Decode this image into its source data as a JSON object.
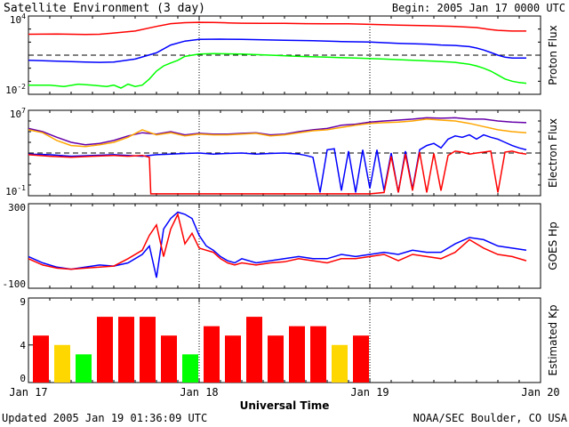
{
  "header": {
    "title": "Satellite Environment (3 day)",
    "begin": "Begin:  2005 Jan 17 0000 UTC"
  },
  "footer": {
    "updated": "Updated 2005 Jan 19 01:36:09 UTC",
    "credit": "NOAA/SEC Boulder, CO USA"
  },
  "colors": {
    "red": "#ff0000",
    "blue": "#0000ff",
    "green": "#00ff00",
    "orange": "#ffa500",
    "purple": "#6600aa",
    "kp_red": "#ff0000",
    "kp_yellow": "#ffd700",
    "kp_green": "#00ff00"
  },
  "chart_data": [
    {
      "id": "proton",
      "type": "line",
      "ylabel": "Proton Flux",
      "yscale": "log",
      "ylim": [
        0.01,
        10000
      ],
      "yticks": [
        {
          "value": 10000,
          "base": "10",
          "exp": "4"
        },
        {
          "value": 0.01,
          "base": "10",
          "exp": "-2"
        }
      ],
      "threshold": 10,
      "xlim": [
        0,
        72
      ],
      "series": [
        {
          "color": "red",
          "x": [
            0,
            4,
            6,
            8,
            10,
            12,
            15,
            18,
            20,
            22,
            24,
            26,
            28,
            30,
            33,
            36,
            39,
            42,
            45,
            48,
            52,
            56,
            60,
            63,
            64,
            65,
            66,
            67,
            68,
            69,
            70
          ],
          "y": [
            400,
            420,
            400,
            380,
            400,
            500,
            700,
            1600,
            2600,
            3100,
            3300,
            3200,
            3000,
            2800,
            2700,
            2700,
            2600,
            2500,
            2500,
            2300,
            2000,
            1800,
            1600,
            1300,
            1100,
            900,
            800,
            750,
            700,
            700,
            700
          ]
        },
        {
          "color": "blue",
          "x": [
            0,
            4,
            8,
            10,
            12,
            15,
            18,
            20,
            22,
            24,
            27,
            30,
            33,
            36,
            40,
            44,
            48,
            52,
            56,
            58,
            60,
            62,
            63,
            64,
            65,
            66,
            67,
            68,
            69,
            70
          ],
          "y": [
            4,
            3.5,
            3,
            2.8,
            3,
            5,
            15,
            60,
            120,
            160,
            170,
            160,
            150,
            140,
            130,
            110,
            100,
            80,
            70,
            60,
            55,
            45,
            35,
            25,
            16,
            10,
            7,
            6,
            6,
            6
          ]
        },
        {
          "color": "green",
          "x": [
            0,
            3,
            5,
            7,
            9,
            11,
            12,
            13,
            14,
            15,
            16,
            17,
            18,
            19,
            20,
            21,
            22,
            24,
            26,
            30,
            34,
            38,
            42,
            46,
            50,
            54,
            57,
            60,
            62,
            63,
            64,
            65,
            66,
            67,
            68,
            69,
            70
          ],
          "y": [
            0.05,
            0.05,
            0.04,
            0.06,
            0.05,
            0.04,
            0.05,
            0.03,
            0.06,
            0.04,
            0.05,
            0.15,
            0.6,
            1.5,
            2.5,
            4,
            8,
            12,
            13,
            12,
            10,
            8,
            7,
            6,
            5,
            4,
            3.5,
            2.8,
            2,
            1.5,
            1,
            0.6,
            0.3,
            0.15,
            0.1,
            0.08,
            0.07
          ]
        }
      ]
    },
    {
      "id": "electron",
      "type": "line",
      "ylabel": "Electron Flux",
      "yscale": "log",
      "ylim": [
        0.1,
        10000000
      ],
      "yticks": [
        {
          "value": 10000000,
          "base": "10",
          "exp": "7"
        },
        {
          "value": 0.1,
          "base": "10",
          "exp": "-1"
        }
      ],
      "threshold": 1000,
      "xlim": [
        0,
        72
      ],
      "series": [
        {
          "color": "purple",
          "x": [
            0,
            2,
            4,
            6,
            8,
            10,
            12,
            14,
            16,
            18,
            20,
            22,
            24,
            26,
            28,
            30,
            32,
            34,
            36,
            38,
            40,
            42,
            44,
            46,
            48,
            50,
            52,
            54,
            56,
            58,
            60,
            62,
            64,
            66,
            68,
            70
          ],
          "y": [
            200000,
            100000,
            30000,
            10000,
            6000,
            8000,
            15000,
            40000,
            80000,
            60000,
            100000,
            50000,
            70000,
            60000,
            60000,
            70000,
            80000,
            50000,
            60000,
            100000,
            150000,
            200000,
            400000,
            500000,
            800000,
            1000000,
            1200000,
            1500000,
            2000000,
            1800000,
            2000000,
            1500000,
            1500000,
            1000000,
            800000,
            700000
          ]
        },
        {
          "color": "orange",
          "x": [
            0,
            2,
            4,
            6,
            8,
            10,
            12,
            14,
            16,
            18,
            20,
            22,
            24,
            26,
            28,
            30,
            32,
            34,
            36,
            38,
            40,
            42,
            44,
            46,
            48,
            50,
            52,
            54,
            56,
            58,
            60,
            62,
            64,
            66,
            68,
            70
          ],
          "y": [
            150000,
            80000,
            15000,
            5000,
            4000,
            6000,
            10000,
            30000,
            150000,
            50000,
            80000,
            40000,
            60000,
            50000,
            50000,
            60000,
            70000,
            40000,
            50000,
            80000,
            120000,
            150000,
            250000,
            400000,
            600000,
            700000,
            800000,
            1000000,
            1500000,
            1200000,
            1000000,
            600000,
            300000,
            150000,
            100000,
            80000
          ]
        },
        {
          "color": "blue",
          "x": [
            0,
            3,
            6,
            9,
            12,
            14,
            16,
            18,
            20,
            22,
            24,
            26,
            28,
            30,
            32,
            34,
            36,
            38,
            39,
            40,
            41,
            42,
            43,
            44,
            45,
            46,
            47,
            48,
            49,
            50,
            51,
            52,
            53,
            54,
            55,
            56,
            57,
            58,
            59,
            60,
            61,
            62,
            63,
            64,
            65,
            66,
            67,
            68,
            69,
            70
          ],
          "y": [
            800,
            700,
            500,
            600,
            700,
            600,
            500,
            700,
            800,
            900,
            1000,
            800,
            900,
            1000,
            800,
            900,
            1000,
            800,
            600,
            400,
            0.2,
            2000,
            2500,
            0.3,
            1500,
            0.2,
            2000,
            0.5,
            2000,
            0.3,
            1000,
            0.2,
            1500,
            0.4,
            2000,
            5000,
            8000,
            3000,
            20000,
            40000,
            30000,
            50000,
            20000,
            50000,
            30000,
            20000,
            10000,
            5000,
            3000,
            2000
          ]
        },
        {
          "color": "red",
          "x": [
            0,
            3,
            6,
            9,
            12,
            14,
            16,
            17,
            17.2,
            20,
            24,
            28,
            32,
            36,
            40,
            44,
            48,
            50,
            51,
            52,
            53,
            54,
            55,
            56,
            57,
            58,
            59,
            60,
            61,
            62,
            63,
            64,
            65,
            66,
            67,
            68,
            69,
            70
          ],
          "y": [
            700,
            500,
            400,
            500,
            600,
            500,
            600,
            400,
            0.15,
            0.15,
            0.15,
            0.15,
            0.15,
            0.15,
            0.15,
            0.15,
            0.15,
            0.2,
            500,
            0.2,
            800,
            0.3,
            1200,
            0.2,
            900,
            0.3,
            600,
            1500,
            1200,
            800,
            1000,
            1200,
            1500,
            0.2,
            1200,
            1500,
            1000,
            800
          ]
        }
      ]
    },
    {
      "id": "hp",
      "type": "line",
      "ylabel": "GOES Hp",
      "yscale": "linear",
      "ylim": [
        -100,
        300
      ],
      "yticks": [
        {
          "value": 300,
          "label": "300"
        },
        {
          "value": -100,
          "label": "-100"
        }
      ],
      "xlim": [
        0,
        72
      ],
      "series": [
        {
          "color": "blue",
          "x": [
            0,
            2,
            4,
            6,
            8,
            10,
            12,
            14,
            16,
            17,
            18,
            19,
            20,
            21,
            22,
            23,
            24,
            25,
            26,
            27,
            28,
            29,
            30,
            32,
            34,
            36,
            38,
            40,
            42,
            44,
            46,
            48,
            50,
            52,
            54,
            56,
            58,
            60,
            62,
            64,
            66,
            68,
            70
          ],
          "y": [
            50,
            20,
            0,
            -10,
            0,
            10,
            5,
            20,
            60,
            100,
            -50,
            180,
            230,
            260,
            250,
            230,
            150,
            100,
            80,
            50,
            30,
            20,
            40,
            20,
            30,
            40,
            50,
            40,
            40,
            60,
            50,
            60,
            70,
            60,
            80,
            70,
            70,
            110,
            140,
            130,
            100,
            90,
            80
          ]
        },
        {
          "color": "red",
          "x": [
            0,
            2,
            4,
            6,
            8,
            10,
            12,
            14,
            16,
            17,
            18,
            19,
            20,
            21,
            22,
            23,
            24,
            25,
            26,
            27,
            28,
            29,
            30,
            32,
            34,
            36,
            38,
            40,
            42,
            44,
            46,
            48,
            50,
            52,
            54,
            56,
            58,
            60,
            62,
            64,
            66,
            68,
            70
          ],
          "y": [
            40,
            10,
            -5,
            -10,
            -5,
            0,
            5,
            40,
            80,
            150,
            200,
            50,
            180,
            250,
            110,
            160,
            90,
            80,
            70,
            40,
            20,
            10,
            20,
            10,
            20,
            25,
            40,
            30,
            20,
            40,
            40,
            50,
            60,
            30,
            60,
            50,
            40,
            70,
            130,
            90,
            60,
            50,
            30
          ]
        }
      ]
    },
    {
      "id": "kp",
      "type": "bar",
      "ylabel": "Estimated Kp",
      "ylim": [
        0,
        9
      ],
      "yticks": [
        {
          "value": 9,
          "label": "9"
        },
        {
          "value": 4,
          "label": "4"
        },
        {
          "value": 0,
          "label": "0"
        }
      ],
      "xlim": [
        0,
        72
      ],
      "bar_width_hours": 3,
      "values": [
        5,
        4,
        3,
        7,
        7,
        7,
        5,
        3,
        6,
        5,
        7,
        5,
        6,
        6,
        4,
        5
      ],
      "colors": [
        "red",
        "yellow",
        "green",
        "red",
        "red",
        "red",
        "red",
        "green",
        "red",
        "red",
        "red",
        "red",
        "red",
        "red",
        "yellow",
        "red"
      ]
    }
  ],
  "xaxis": {
    "xlabel": "Universal Time",
    "ticks": [
      {
        "hour": 0,
        "label": "Jan 17"
      },
      {
        "hour": 24,
        "label": "Jan 18"
      },
      {
        "hour": 48,
        "label": "Jan 19"
      },
      {
        "hour": 72,
        "label": "Jan 20"
      }
    ],
    "dotted_at_hours": [
      24,
      48
    ]
  }
}
